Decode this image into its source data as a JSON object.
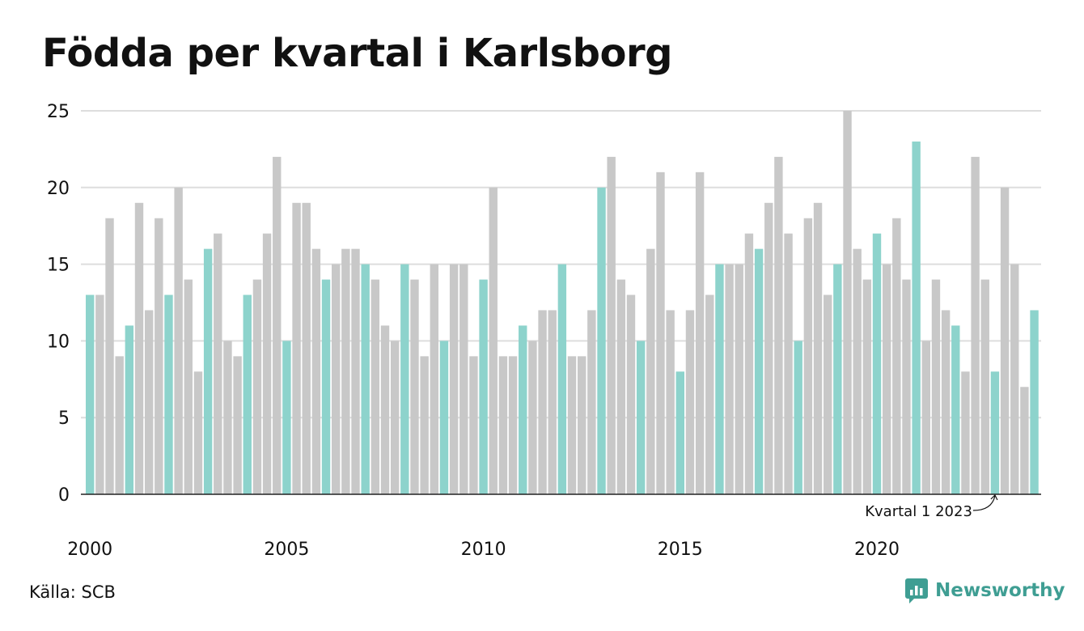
{
  "header": {
    "title": "Födda per kvartal i Karlsborg"
  },
  "footer": {
    "source": "Källa: SCB",
    "brand": "Newsworthy"
  },
  "colors": {
    "q1": "#8dd3cc",
    "other": "#c8c8c8",
    "highlight": "#21968a",
    "grid": "#dddddd",
    "brand": "#3f9e93"
  },
  "chart_data": {
    "type": "bar",
    "ylim": [
      0,
      25
    ],
    "y_ticks": [
      0,
      5,
      10,
      15,
      20,
      25
    ],
    "x_tick_labels": [
      "2000",
      "2005",
      "2010",
      "2015",
      "2020"
    ],
    "start_year": 2000,
    "annotation": {
      "text": "Kvartal 1 2023",
      "year": 2023,
      "quarter": 1
    },
    "highlight": {
      "year": 2024,
      "quarter": 2
    },
    "grid": true,
    "values": [
      13,
      13,
      18,
      9,
      11,
      19,
      12,
      18,
      13,
      20,
      14,
      8,
      16,
      17,
      10,
      9,
      13,
      14,
      17,
      22,
      10,
      19,
      19,
      16,
      14,
      15,
      16,
      16,
      15,
      14,
      11,
      10,
      15,
      14,
      9,
      15,
      10,
      15,
      15,
      9,
      14,
      20,
      9,
      9,
      11,
      10,
      12,
      12,
      15,
      9,
      9,
      12,
      20,
      22,
      14,
      13,
      10,
      16,
      21,
      12,
      8,
      12,
      21,
      13,
      15,
      15,
      15,
      17,
      16,
      19,
      22,
      17,
      10,
      18,
      19,
      13,
      15,
      25,
      16,
      14,
      17,
      15,
      18,
      14,
      23,
      10,
      14,
      12,
      11,
      8,
      22,
      14,
      8,
      20,
      15,
      7,
      12
    ]
  }
}
